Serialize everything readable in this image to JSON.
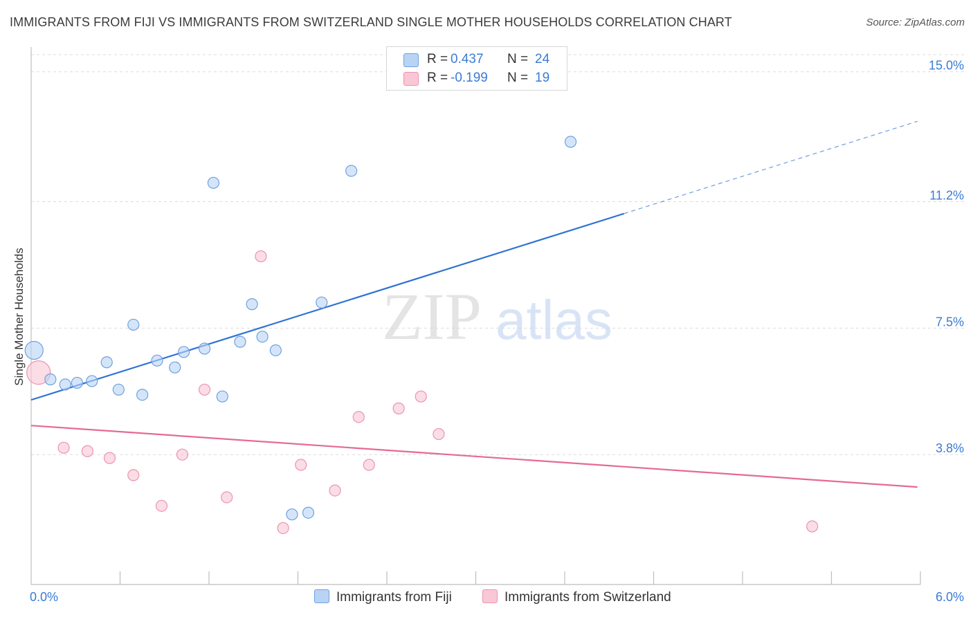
{
  "header": {
    "title": "IMMIGRANTS FROM FIJI VS IMMIGRANTS FROM SWITZERLAND SINGLE MOTHER HOUSEHOLDS CORRELATION CHART",
    "source": "Source: ZipAtlas.com"
  },
  "watermark": {
    "zip": "ZIP",
    "atlas": "atlas"
  },
  "legend": {
    "fiji": {
      "r_label": "R =",
      "r_value": "0.437",
      "n_label": "N =",
      "n_value": "24"
    },
    "switzerland": {
      "r_label": "R =",
      "r_value": "-0.199",
      "n_label": "N =",
      "n_value": "19"
    }
  },
  "bottom_legend": {
    "fiji": "Immigrants from Fiji",
    "switzerland": "Immigrants from Switzerland"
  },
  "colors": {
    "fiji_fill": "#b9d3f5",
    "fiji_stroke": "#6fa0de",
    "fiji_line": "#2f72d3",
    "swiss_fill": "#f9c7d5",
    "swiss_stroke": "#ec93ae",
    "swiss_line": "#e56a93",
    "grid": "#dcdcdc",
    "axis_label": "#3a7bd5"
  },
  "chart_data": {
    "type": "scatter",
    "title": "IMMIGRANTS FROM FIJI VS IMMIGRANTS FROM SWITZERLAND SINGLE MOTHER HOUSEHOLDS CORRELATION CHART",
    "xlabel": "",
    "ylabel": "Single Mother Households",
    "xlim": [
      0,
      6.0
    ],
    "ylim": [
      0,
      15.5
    ],
    "x_ticks": [
      {
        "value": 0,
        "label": "0.0%"
      },
      {
        "value": 6.0,
        "label": "6.0%"
      }
    ],
    "x_minor_ticks": [
      0.6,
      1.2,
      1.8,
      2.4,
      3.0,
      3.6,
      4.2,
      4.8,
      5.4
    ],
    "y_ticks": [
      {
        "value": 3.8,
        "label": "3.8%"
      },
      {
        "value": 7.5,
        "label": "7.5%"
      },
      {
        "value": 11.2,
        "label": "11.2%"
      },
      {
        "value": 15.0,
        "label": "15.0%"
      }
    ],
    "series": [
      {
        "name": "Immigrants from Fiji",
        "color": "#6fa0de",
        "points": [
          {
            "x": 0.02,
            "y": 6.85,
            "big": true
          },
          {
            "x": 0.13,
            "y": 6.0
          },
          {
            "x": 0.23,
            "y": 5.85
          },
          {
            "x": 0.31,
            "y": 5.9
          },
          {
            "x": 0.41,
            "y": 5.95
          },
          {
            "x": 0.51,
            "y": 6.5
          },
          {
            "x": 0.59,
            "y": 5.7
          },
          {
            "x": 0.69,
            "y": 7.6
          },
          {
            "x": 0.75,
            "y": 5.55
          },
          {
            "x": 0.85,
            "y": 6.55
          },
          {
            "x": 0.97,
            "y": 6.35
          },
          {
            "x": 1.03,
            "y": 6.8
          },
          {
            "x": 1.17,
            "y": 6.9
          },
          {
            "x": 1.23,
            "y": 11.75
          },
          {
            "x": 1.29,
            "y": 5.5
          },
          {
            "x": 1.41,
            "y": 7.1
          },
          {
            "x": 1.49,
            "y": 8.2
          },
          {
            "x": 1.56,
            "y": 7.25
          },
          {
            "x": 1.65,
            "y": 6.85
          },
          {
            "x": 1.76,
            "y": 2.05
          },
          {
            "x": 1.87,
            "y": 2.1
          },
          {
            "x": 1.96,
            "y": 8.25
          },
          {
            "x": 2.16,
            "y": 12.1
          },
          {
            "x": 3.64,
            "y": 12.95
          }
        ],
        "trend": {
          "x0": 0,
          "y0": 5.4,
          "x1": 4.0,
          "y1": 10.85,
          "dash_to_x": 5.98,
          "dash_to_y": 13.55
        }
      },
      {
        "name": "Immigrants from Switzerland",
        "color": "#ec93ae",
        "points": [
          {
            "x": 0.05,
            "y": 6.2,
            "big": true
          },
          {
            "x": 0.22,
            "y": 4.0
          },
          {
            "x": 0.38,
            "y": 3.9
          },
          {
            "x": 0.53,
            "y": 3.7
          },
          {
            "x": 0.69,
            "y": 3.2
          },
          {
            "x": 0.88,
            "y": 2.3
          },
          {
            "x": 1.02,
            "y": 3.8
          },
          {
            "x": 1.17,
            "y": 5.7
          },
          {
            "x": 1.32,
            "y": 2.55
          },
          {
            "x": 1.55,
            "y": 9.6
          },
          {
            "x": 1.7,
            "y": 1.65
          },
          {
            "x": 1.82,
            "y": 3.5
          },
          {
            "x": 2.05,
            "y": 2.75
          },
          {
            "x": 2.21,
            "y": 4.9
          },
          {
            "x": 2.28,
            "y": 3.5
          },
          {
            "x": 2.48,
            "y": 5.15
          },
          {
            "x": 2.63,
            "y": 5.5
          },
          {
            "x": 2.75,
            "y": 4.4
          },
          {
            "x": 5.27,
            "y": 1.7
          }
        ],
        "trend": {
          "x0": 0,
          "y0": 4.65,
          "x1": 5.98,
          "y1": 2.85
        }
      }
    ]
  }
}
